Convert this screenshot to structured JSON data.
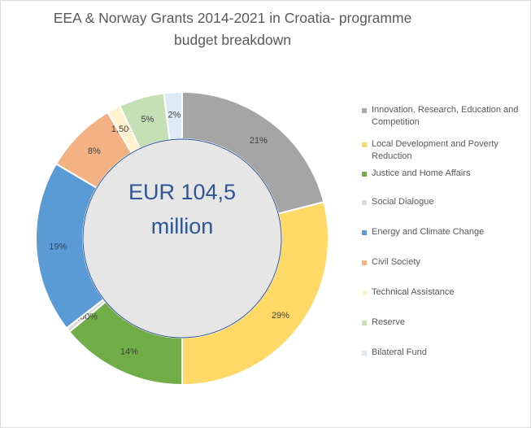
{
  "chart_data": {
    "type": "pie",
    "title": "EEA & Norway Grants 2014-2021 in Croatia- programme budget breakdown",
    "center_label": "EUR 104,5 million",
    "slices": [
      {
        "name": "Innovation, Research, Education and Competition",
        "value": 21,
        "label": "21%",
        "color": "#a5a5a5"
      },
      {
        "name": "Local Development and Poverty Reduction",
        "value": 29,
        "label": "29%",
        "color": "#ffd966"
      },
      {
        "name": "Justice and Home Affairs",
        "value": 14,
        "label": "14%",
        "color": "#70ad47"
      },
      {
        "name": "Social Dialogue",
        "value": 0.5,
        "label": "0,50%",
        "color": "#dbdbdb"
      },
      {
        "name": "Energy and Climate Change",
        "value": 19,
        "label": "19%",
        "color": "#5b9bd5"
      },
      {
        "name": "Civil Society",
        "value": 8,
        "label": "8%",
        "color": "#f4b183"
      },
      {
        "name": "Technical Assistance",
        "value": 1.5,
        "label": "1,50%",
        "color": "#fff2cc"
      },
      {
        "name": "Reserve",
        "value": 5,
        "label": "5%",
        "color": "#c5e0b4"
      },
      {
        "name": "Bilateral Fund",
        "value": 2,
        "label": "2%",
        "color": "#deebf7"
      }
    ],
    "legend_position": "right"
  }
}
